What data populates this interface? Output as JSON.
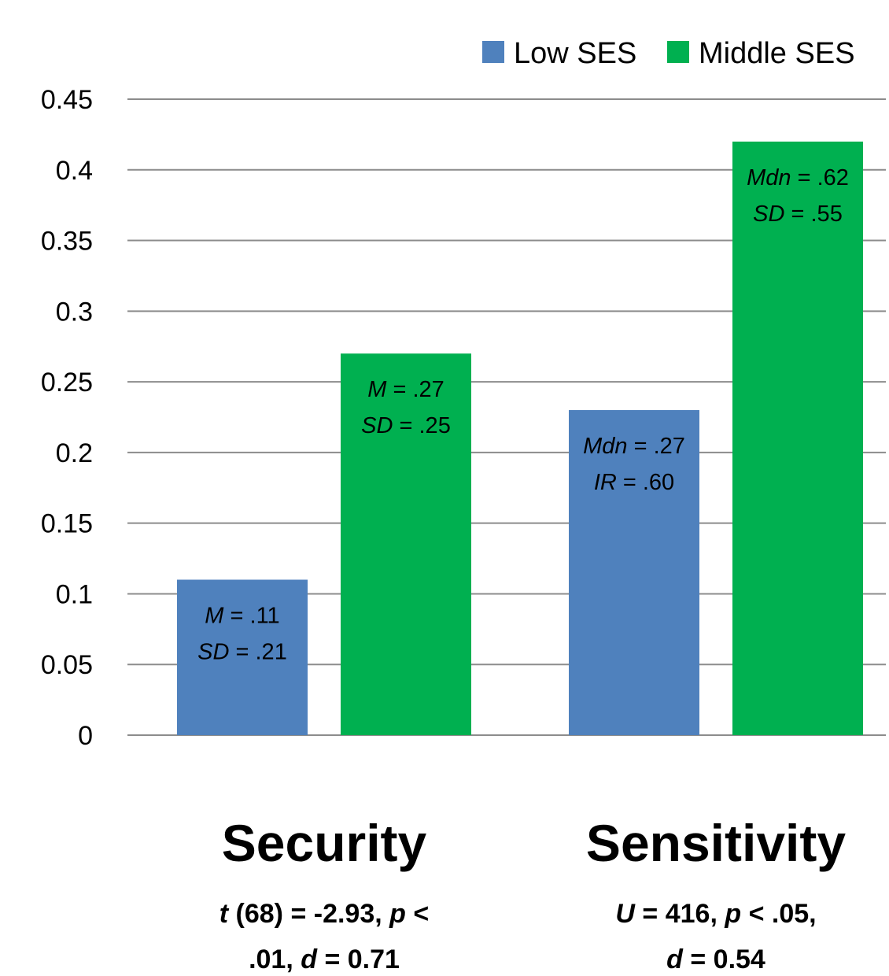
{
  "chart_data": {
    "type": "bar",
    "ylim": [
      0,
      0.45
    ],
    "yticks": [
      "0",
      "0.05",
      "0.1",
      "0.15",
      "0.2",
      "0.25",
      "0.3",
      "0.35",
      "0.4",
      "0.45"
    ],
    "yvalues": [
      0,
      0.05,
      0.1,
      0.15,
      0.2,
      0.25,
      0.3,
      0.35,
      0.4,
      0.45
    ],
    "grid": true,
    "legend_position": "top-right",
    "categories": [
      "Security",
      "Sensitivity"
    ],
    "series": [
      {
        "name": "Low SES",
        "color": "#4f81bd",
        "values": [
          0.11,
          0.23
        ]
      },
      {
        "name": "Middle SES",
        "color": "#00b050",
        "values": [
          0.27,
          0.42
        ]
      }
    ],
    "bar_labels": [
      [
        [
          {
            "italic": "M",
            "rest": " = .11"
          },
          {
            "italic": "SD",
            "rest": " = .21"
          }
        ],
        [
          {
            "italic": "Mdn",
            "rest": " = .27"
          },
          {
            "italic": "IR",
            "rest": " = .60"
          }
        ]
      ],
      [
        [
          {
            "italic": "M",
            "rest": " = .27"
          },
          {
            "italic": "SD",
            "rest": " = .25"
          }
        ],
        [
          {
            "italic": "Mdn",
            "rest": " = .62"
          },
          {
            "italic": "SD",
            "rest": " = .55"
          }
        ]
      ]
    ],
    "category_stats": [
      [
        [
          {
            "t": "t",
            "i": true
          },
          {
            "t": " (68) = -2.93, ",
            "i": false
          },
          {
            "t": "p",
            "i": true
          },
          {
            "t": " <",
            "i": false
          }
        ],
        [
          {
            "t": ".01,  ",
            "i": false
          },
          {
            "t": "d",
            "i": true
          },
          {
            "t": " = 0.71",
            "i": false
          }
        ]
      ],
      [
        [
          {
            "t": "U",
            "i": true
          },
          {
            "t": " = 416, ",
            "i": false
          },
          {
            "t": "p",
            "i": true
          },
          {
            "t": " < .05,",
            "i": false
          }
        ],
        [
          {
            "t": "d",
            "i": true
          },
          {
            "t": " = 0.54",
            "i": false
          }
        ]
      ]
    ]
  }
}
